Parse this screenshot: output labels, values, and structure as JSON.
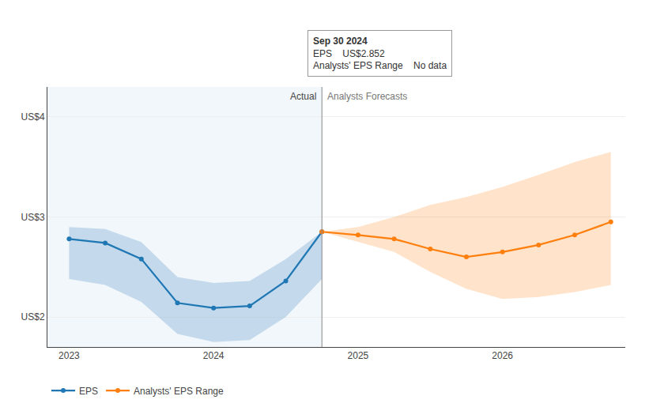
{
  "chart_data": {
    "type": "line",
    "series": [
      {
        "name": "EPS",
        "x": [
          2023.0,
          2023.25,
          2023.5,
          2023.75,
          2024.0,
          2024.25,
          2024.5,
          2024.75
        ],
        "values": [
          2.78,
          2.74,
          2.58,
          2.14,
          2.09,
          2.11,
          2.36,
          2.852
        ],
        "band_lower": [
          2.38,
          2.32,
          2.15,
          1.83,
          1.75,
          1.77,
          2.0,
          2.38
        ],
        "band_upper": [
          2.9,
          2.88,
          2.75,
          2.4,
          2.34,
          2.36,
          2.58,
          2.852
        ],
        "marker": "circle"
      },
      {
        "name": "Analysts' EPS Range",
        "x": [
          2024.75,
          2025.0,
          2025.25,
          2025.5,
          2025.75,
          2026.0,
          2026.25,
          2026.5,
          2026.75
        ],
        "values": [
          2.852,
          2.82,
          2.78,
          2.68,
          2.6,
          2.65,
          2.72,
          2.82,
          2.95
        ],
        "band_lower": [
          2.852,
          2.75,
          2.65,
          2.45,
          2.28,
          2.18,
          2.2,
          2.25,
          2.32
        ],
        "band_upper": [
          2.852,
          2.9,
          3.0,
          3.12,
          3.2,
          3.3,
          3.42,
          3.55,
          3.65
        ],
        "marker": "circle"
      }
    ],
    "xlim": [
      2022.85,
      2026.85
    ],
    "xticks": [
      2023,
      2024,
      2025,
      2026
    ],
    "ylim": [
      1.7,
      4.3
    ],
    "yticks": [
      {
        "value": 2,
        "label": "US$2"
      },
      {
        "value": 3,
        "label": "US$3"
      },
      {
        "value": 4,
        "label": "US$4"
      }
    ],
    "grid": "y",
    "legend": "bottom",
    "divider": 2024.75,
    "region_labels": [
      "Actual",
      "Analysts Forecasts"
    ],
    "tooltip": {
      "title": "Sep 30 2024",
      "rows": [
        [
          "EPS",
          "US$2.852"
        ],
        [
          "Analysts' EPS Range",
          "No data"
        ]
      ]
    }
  }
}
